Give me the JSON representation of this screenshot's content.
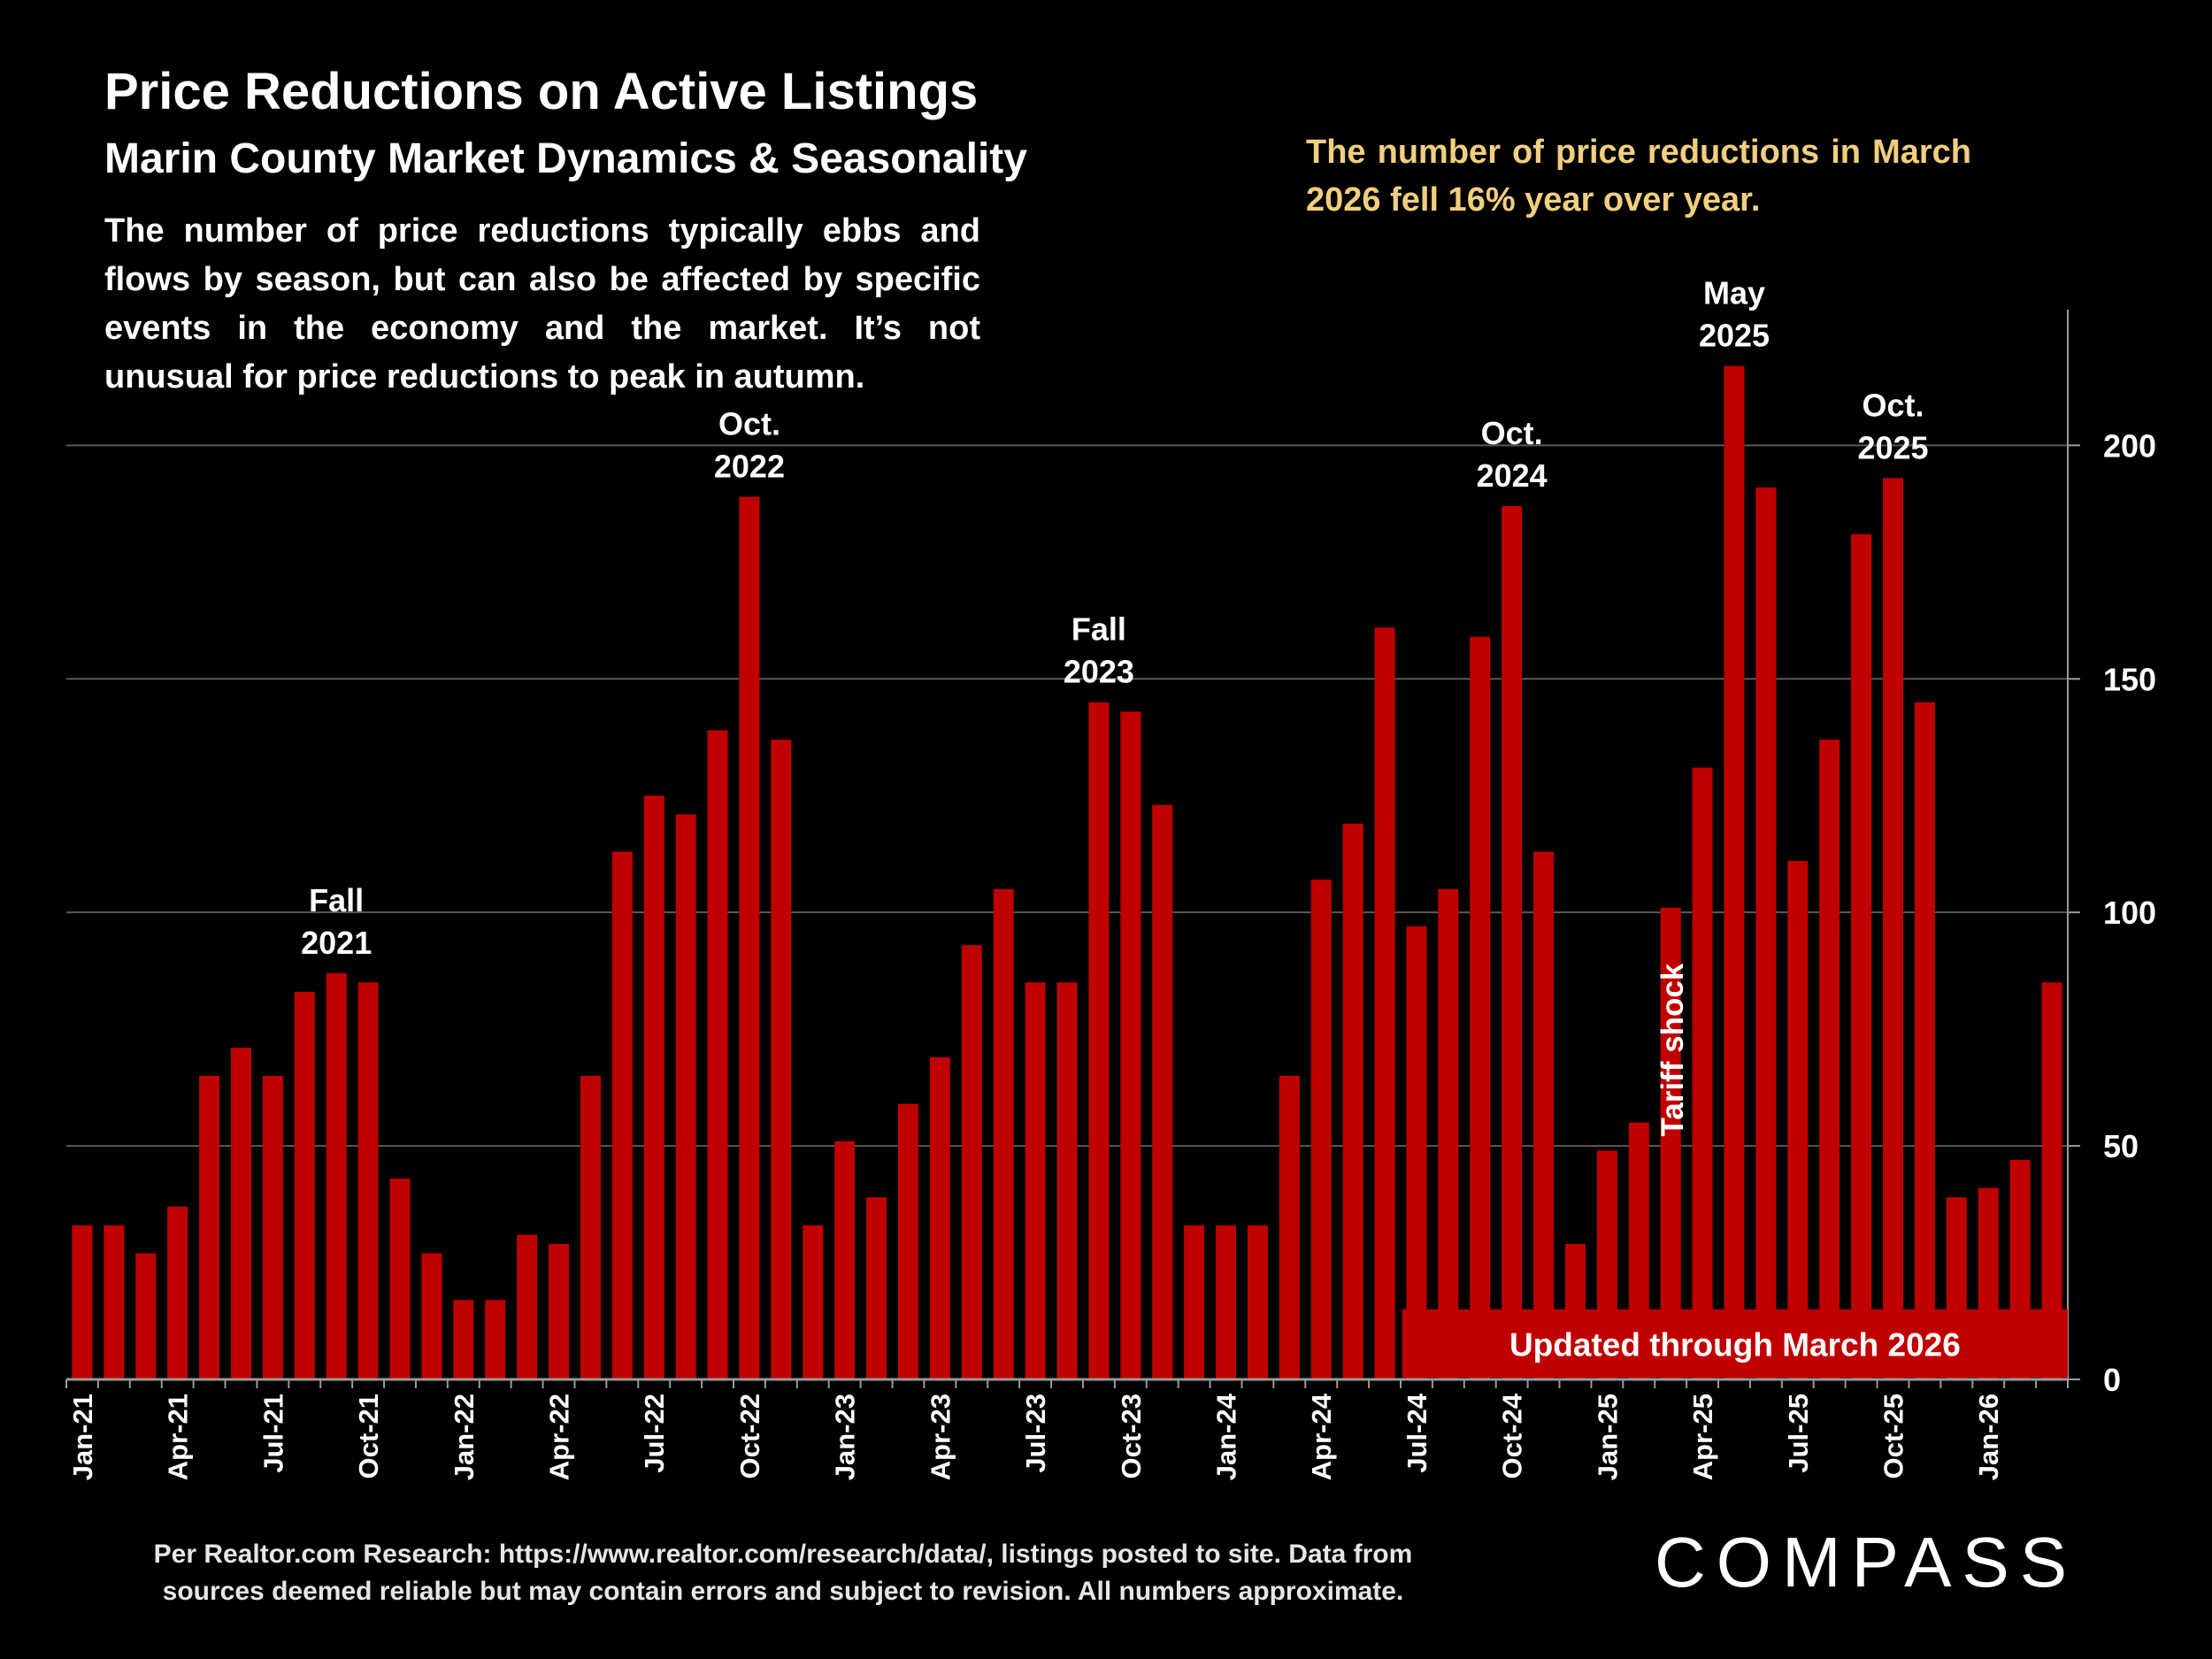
{
  "header": {
    "title": "Price Reductions on Active Listings",
    "subtitle": "Marin County Market Dynamics & Seasonality",
    "description": "The number of price reductions typically ebbs and flows by season, but can also be affected by specific events in the economy and the market. It’s not unusual for price reductions to peak in autumn."
  },
  "callout": "The number of price reductions in March 2026 fell 16% year over year.",
  "footer": {
    "line1": "Per Realtor.com Research:  https://www.realtor.com/research/data/, listings posted to site. Data from",
    "line2": "sources deemed reliable but may contain errors and subject to revision. All numbers approximate."
  },
  "logo": "COMPASS",
  "colors": {
    "bar": "#c00000",
    "background": "#000000",
    "callout": "#f2cf7f",
    "gridline": "#5a5a5a"
  },
  "chart_data": {
    "type": "bar",
    "title": "Price Reductions on Active Listings",
    "xlabel": "",
    "ylabel": "",
    "ylim": [
      0,
      230
    ],
    "y_ticks": [
      0,
      50,
      100,
      150,
      200
    ],
    "y_axis_side": "right",
    "grid": true,
    "categories": [
      "Jan-21",
      "Feb-21",
      "Mar-21",
      "Apr-21",
      "May-21",
      "Jun-21",
      "Jul-21",
      "Aug-21",
      "Sep-21",
      "Oct-21",
      "Nov-21",
      "Dec-21",
      "Jan-22",
      "Feb-22",
      "Mar-22",
      "Apr-22",
      "May-22",
      "Jun-22",
      "Jul-22",
      "Aug-22",
      "Sep-22",
      "Oct-22",
      "Nov-22",
      "Dec-22",
      "Jan-23",
      "Feb-23",
      "Mar-23",
      "Apr-23",
      "May-23",
      "Jun-23",
      "Jul-23",
      "Aug-23",
      "Sep-23",
      "Oct-23",
      "Nov-23",
      "Dec-23",
      "Jan-24",
      "Feb-24",
      "Mar-24",
      "Apr-24",
      "May-24",
      "Jun-24",
      "Jul-24",
      "Aug-24",
      "Sep-24",
      "Oct-24",
      "Nov-24",
      "Dec-24",
      "Jan-25",
      "Feb-25",
      "Mar-25",
      "Apr-25",
      "May-25",
      "Jun-25",
      "Jul-25",
      "Aug-25",
      "Sep-25",
      "Oct-25",
      "Nov-25",
      "Dec-25",
      "Jan-26",
      "Feb-26",
      "Mar-26"
    ],
    "tick_labels": [
      "Jan-21",
      "Apr-21",
      "Jul-21",
      "Oct-21",
      "Jan-22",
      "Apr-22",
      "Jul-22",
      "Oct-22",
      "Jan-23",
      "Apr-23",
      "Jul-23",
      "Oct-23",
      "Jan-24",
      "Apr-24",
      "Jul-24",
      "Oct-24",
      "Jan-25",
      "Apr-25",
      "Jul-25",
      "Oct-25",
      "Jan-26"
    ],
    "series": [
      {
        "name": "Price reductions",
        "values": [
          33,
          33,
          27,
          37,
          65,
          71,
          65,
          83,
          87,
          85,
          43,
          27,
          17,
          17,
          31,
          29,
          65,
          113,
          125,
          121,
          139,
          189,
          137,
          33,
          51,
          39,
          59,
          69,
          93,
          105,
          85,
          85,
          145,
          143,
          123,
          33,
          33,
          33,
          65,
          107,
          119,
          161,
          97,
          105,
          159,
          187,
          113,
          29,
          49,
          55,
          101,
          131,
          217,
          191,
          111,
          137,
          181,
          193,
          145,
          39,
          41,
          47,
          85
        ]
      }
    ],
    "annotations": [
      {
        "text": "Fall 2021",
        "line1": "Fall",
        "line2": "2021",
        "category": "Sep-21"
      },
      {
        "text": "Oct. 2022",
        "line1": "Oct.",
        "line2": "2022",
        "category": "Oct-22"
      },
      {
        "text": "Fall 2023",
        "line1": "Fall",
        "line2": "2023",
        "category": "Sep-23"
      },
      {
        "text": "Oct. 2024",
        "line1": "Oct.",
        "line2": "2024",
        "category": "Oct-24"
      },
      {
        "text": "May 2025",
        "line1": "May",
        "line2": "2025",
        "category": "May-25"
      },
      {
        "text": "Oct. 2025",
        "line1": "Oct.",
        "line2": "2025",
        "category": "Oct-25"
      }
    ],
    "tariff_label": {
      "text": "Tariff shock",
      "category": "Mar-25"
    },
    "updated_banner": "Updated through March 2026"
  }
}
